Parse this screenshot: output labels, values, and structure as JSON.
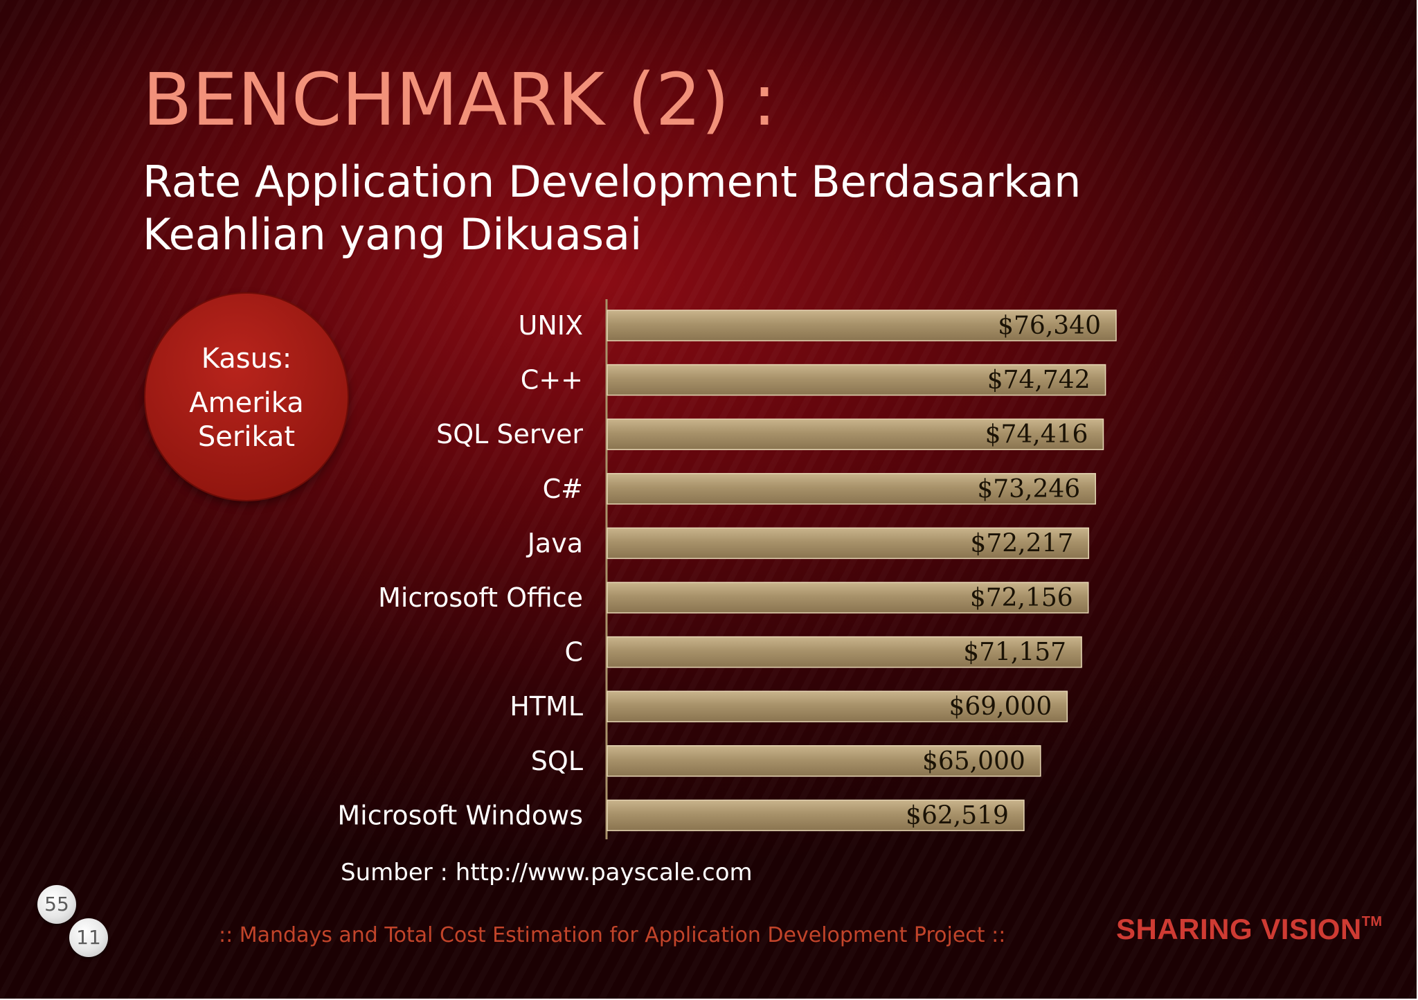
{
  "slide": {
    "title": "BENCHMARK (2) :",
    "subtitle_line1": "Rate Application Development Berdasarkan",
    "subtitle_line2": "Keahlian yang Dikuasai",
    "case_badge": {
      "line1": "Kasus:",
      "line2": "Amerika",
      "line3": "Serikat"
    },
    "source": "Sumber : http://www.payscale.com",
    "footer": "::  Mandays  and  Total Cost Estimation for Application Development Project  ::",
    "brand": "SHARING VISION",
    "brand_mark": "TM",
    "page_numbers": [
      "55",
      "11"
    ]
  },
  "chart_data": {
    "type": "bar",
    "orientation": "horizontal",
    "categories": [
      "UNIX",
      "C++",
      "SQL Server",
      "C#",
      "Java",
      "Microsoft Office",
      "C",
      "HTML",
      "SQL",
      "Microsoft Windows"
    ],
    "values": [
      76340,
      74742,
      74416,
      73246,
      72217,
      72156,
      71157,
      69000,
      65000,
      62519
    ],
    "value_labels": [
      "$76,340",
      "$74,742",
      "$74,416",
      "$73,246",
      "$72,217",
      "$72,156",
      "$71,157",
      "$69,000",
      "$65,000",
      "$62,519"
    ],
    "xlim": [
      0,
      76340
    ],
    "grid": false,
    "bar_color": "#a8926a",
    "axis_color": "#a8926a"
  }
}
